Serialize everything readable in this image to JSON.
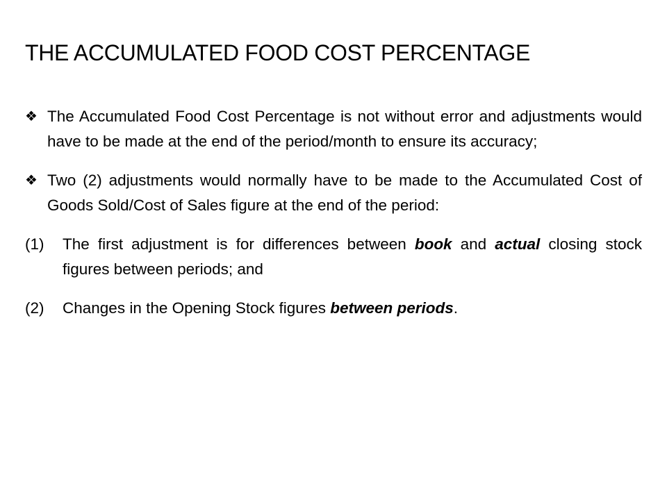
{
  "title": "THE ACCUMULATED FOOD COST PERCENTAGE",
  "bullets": [
    {
      "text": "The Accumulated Food Cost Percentage is not without error and adjustments would have to be made at the end of the period/month to ensure its accuracy;"
    },
    {
      "text": "Two (2) adjustments would normally have to be made to the Accumulated Cost of Goods Sold/Cost of Sales figure at the end of the period:"
    }
  ],
  "items": [
    {
      "marker": "(1)",
      "parts": [
        {
          "text": "The first adjustment is for differences between "
        },
        {
          "text": "book",
          "emphasis": "bold-italic"
        },
        {
          "text": " and "
        },
        {
          "text": "actual",
          "emphasis": "bold-italic"
        },
        {
          "text": " closing stock figures between periods; and"
        }
      ]
    },
    {
      "marker": "(2)",
      "parts": [
        {
          "text": "Changes in the Opening Stock figures "
        },
        {
          "text": "between periods",
          "emphasis": "bold-italic"
        },
        {
          "text": "."
        }
      ]
    }
  ]
}
